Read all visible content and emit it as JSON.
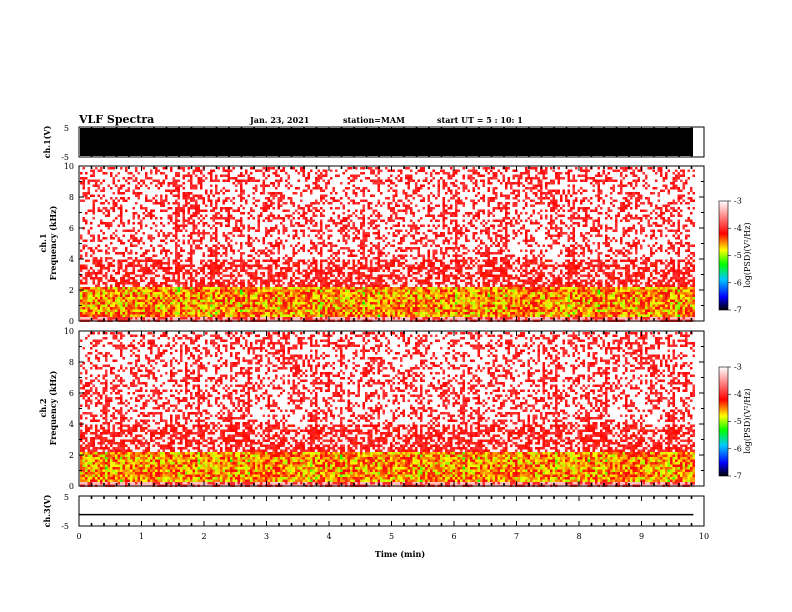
{
  "header": {
    "title": "VLF Spectra",
    "date": "Jan. 23, 2021",
    "station": "station=MAM",
    "start": "start UT =  5 : 10: 1"
  },
  "chart_data": [
    {
      "type": "line",
      "id": "ch1-waveform",
      "ylabel": "ch.1(V)",
      "ylim": [
        -5,
        5
      ],
      "yticks": [
        "5",
        "-5"
      ],
      "xlim": [
        0,
        10
      ],
      "note": "saturated waveform, filled black band across full range",
      "data_extent_x": [
        0,
        9.83
      ]
    },
    {
      "type": "heatmap",
      "id": "ch1-spectrogram",
      "ylabel": "ch.1\nFrequency (kHz)",
      "ylabel_lines": [
        "ch.1",
        "Frequency (kHz)"
      ],
      "ylim": [
        0,
        10
      ],
      "yticks": [
        "0",
        "2",
        "4",
        "6",
        "8",
        "10"
      ],
      "xlim": [
        0,
        10
      ],
      "data_extent_x": [
        0,
        9.83
      ],
      "colorbar": {
        "label": "log(PSD)(V²/Hz)",
        "range": [
          -7,
          -3
        ],
        "ticks": [
          "-3",
          "-4",
          "-5",
          "-6",
          "-7"
        ],
        "colors": [
          "#000000",
          "#0000ff",
          "#00c8ff",
          "#00ff00",
          "#ffff00",
          "#ff0000",
          "#ffffff"
        ]
      },
      "bands_khz": [
        {
          "range": [
            0,
            0.3
          ],
          "level": -3.2
        },
        {
          "range": [
            0.3,
            2.2
          ],
          "level": -4.6
        },
        {
          "range": [
            2.2,
            4
          ],
          "level": -3.8
        },
        {
          "range": [
            4,
            10
          ],
          "level": -3.2
        }
      ]
    },
    {
      "type": "heatmap",
      "id": "ch2-spectrogram",
      "ylabel": "ch.2\nFrequency (kHz)",
      "ylabel_lines": [
        "ch.2",
        "Frequency (kHz)"
      ],
      "ylim": [
        0,
        10
      ],
      "yticks": [
        "0",
        "2",
        "4",
        "6",
        "8",
        "10"
      ],
      "xlim": [
        0,
        10
      ],
      "data_extent_x": [
        0,
        9.83
      ],
      "colorbar": {
        "label": "log(PSD)(V²/Hz)",
        "range": [
          -7,
          -3
        ],
        "ticks": [
          "-3",
          "-4",
          "-5",
          "-6",
          "-7"
        ],
        "colors": [
          "#000000",
          "#0000ff",
          "#00c8ff",
          "#00ff00",
          "#ffff00",
          "#ff0000",
          "#ffffff"
        ]
      },
      "bands_khz": [
        {
          "range": [
            0,
            0.3
          ],
          "level": -3.2
        },
        {
          "range": [
            0.3,
            2.2
          ],
          "level": -4.6
        },
        {
          "range": [
            2.2,
            4
          ],
          "level": -3.8
        },
        {
          "range": [
            4,
            10
          ],
          "level": -3.2
        }
      ]
    },
    {
      "type": "line",
      "id": "ch3-waveform",
      "ylabel": "ch.3(V)",
      "ylim": [
        -5,
        5
      ],
      "yticks": [
        "5",
        "-5"
      ],
      "xlim": [
        0,
        10
      ],
      "x": [
        0,
        9.83
      ],
      "y": [
        -1.2,
        -1.2
      ],
      "xlabel": "Time (min)",
      "xticks": [
        "0",
        "1",
        "2",
        "3",
        "4",
        "5",
        "6",
        "7",
        "8",
        "9",
        "10"
      ]
    }
  ]
}
